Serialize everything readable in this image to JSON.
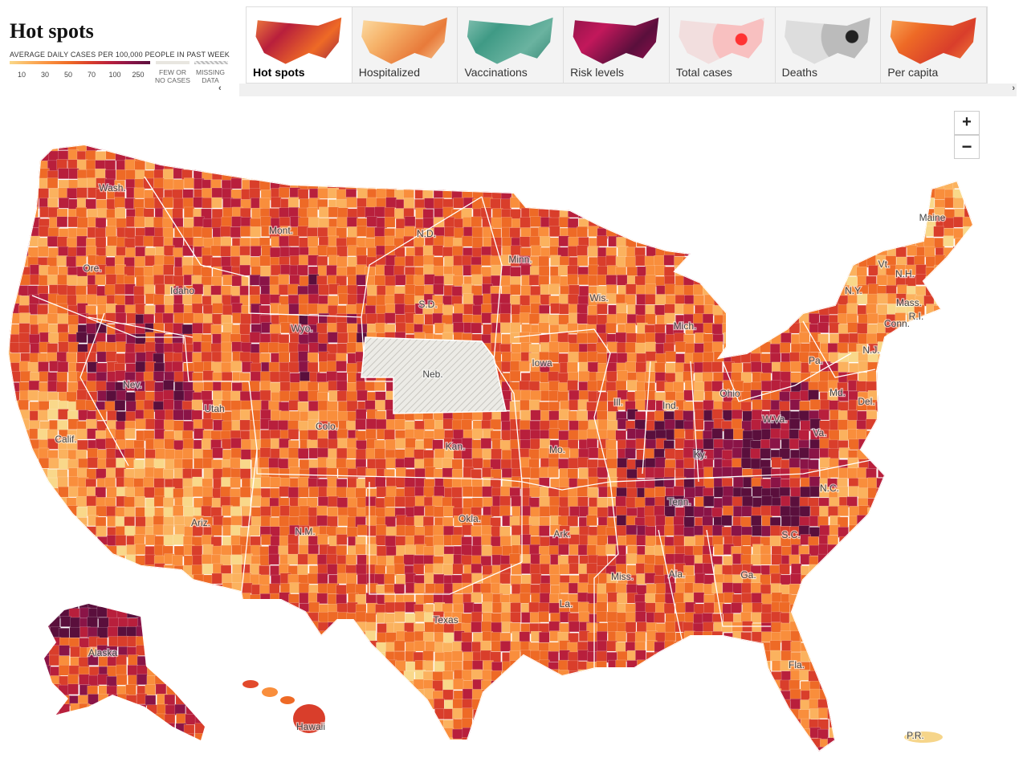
{
  "header": {
    "title": "Hot spots"
  },
  "legend": {
    "caption": "AVERAGE DAILY CASES PER 100,000 PEOPLE IN PAST WEEK",
    "ticks": [
      10,
      30,
      50,
      70,
      100,
      250
    ],
    "few": [
      "FEW OR",
      "NO CASES"
    ],
    "missing": [
      "MISSING",
      "DATA"
    ]
  },
  "tabs": [
    "Hot spots",
    "Hospitalized",
    "Vaccinations",
    "Risk levels",
    "Total cases",
    "Deaths",
    "Per capita"
  ],
  "zoom": {
    "in": "+",
    "out": "−"
  },
  "map": {
    "labels": [
      "Wash.",
      "Ore.",
      "Calif.",
      "Nev.",
      "Idaho",
      "Mont.",
      "Wyo.",
      "Utah",
      "Ariz.",
      "Colo.",
      "N.M.",
      "N.D.",
      "S.D.",
      "Neb.",
      "Kan.",
      "Okla.",
      "Texas",
      "Minn.",
      "Iowa",
      "Mo.",
      "Ark.",
      "La.",
      "Wis.",
      "Ill.",
      "Mich.",
      "Ind.",
      "Ohio",
      "Ky.",
      "Tenn.",
      "Miss.",
      "Ala.",
      "Ga.",
      "Fla.",
      "S.C.",
      "N.C.",
      "Va.",
      "W.Va.",
      "Pa.",
      "N.Y.",
      "Vt.",
      "N.H.",
      "Maine",
      "Mass.",
      "Conn.",
      "R.I.",
      "N.J.",
      "Del.",
      "Md.",
      "Alaska",
      "Hawaii",
      "P.R."
    ]
  }
}
